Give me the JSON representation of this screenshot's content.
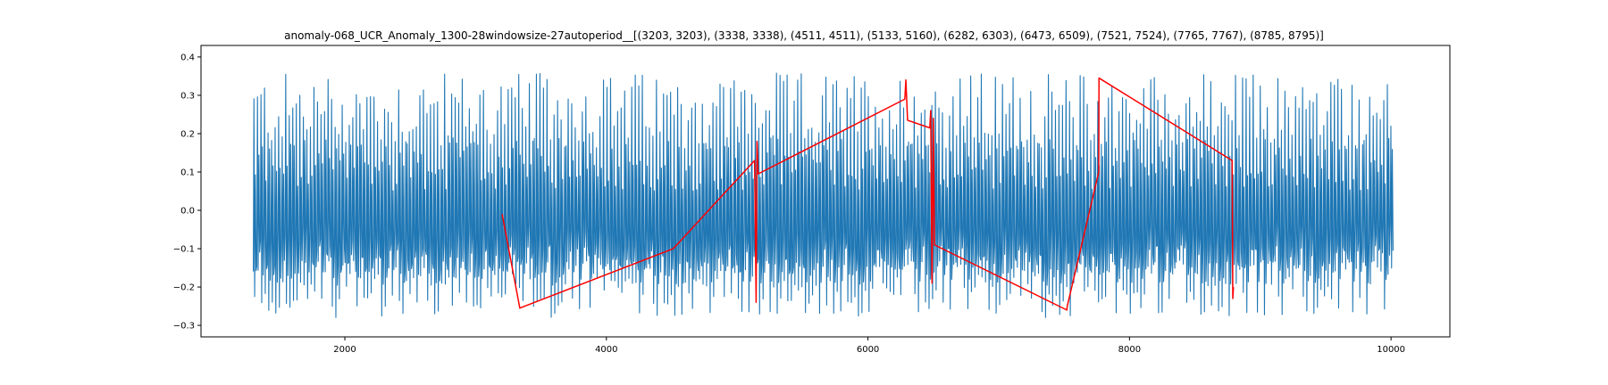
{
  "chart_data": {
    "type": "line",
    "title": "anomaly-068_UCR_Anomaly_1300-28windowsize-27autoperiod__[(3203, 3203), (3338, 3338), (4511, 4511), (5133, 5160), (6282, 6303), (6473, 6509), (7521, 7524), (7765, 7767), (8785, 8795)]",
    "xlabel": "",
    "ylabel": "",
    "xlim": [
      900,
      10450
    ],
    "ylim": [
      -0.33,
      0.43
    ],
    "x_ticks": [
      2000,
      4000,
      6000,
      8000,
      10000
    ],
    "y_ticks": [
      -0.3,
      -0.2,
      -0.1,
      0.0,
      0.1,
      0.2,
      0.3,
      0.4
    ],
    "x_tick_labels": [
      "2000",
      "4000",
      "6000",
      "8000",
      "10000"
    ],
    "y_tick_labels": [
      "−0.3",
      "−0.2",
      "−0.1",
      "0.0",
      "0.1",
      "0.2",
      "0.3",
      "0.4"
    ],
    "grid": false,
    "colors": {
      "signal": "#1f77b4",
      "anomaly": "#ff0000"
    },
    "series": [
      {
        "role": "signal",
        "style": "dense periodic oscillation",
        "x_range": [
          1300,
          10000
        ],
        "y_range": [
          -0.3,
          0.4
        ],
        "period": 27
      },
      {
        "role": "anomaly",
        "points": [
          [
            3203,
            -0.01
          ],
          [
            3338,
            -0.255
          ],
          [
            4511,
            -0.1
          ],
          [
            5133,
            0.13
          ],
          [
            5145,
            -0.24
          ],
          [
            5152,
            0.18
          ],
          [
            5160,
            0.095
          ],
          [
            6282,
            0.29
          ],
          [
            6290,
            0.34
          ],
          [
            6303,
            0.235
          ],
          [
            6473,
            0.215
          ],
          [
            6480,
            0.26
          ],
          [
            6490,
            -0.19
          ],
          [
            6500,
            0.24
          ],
          [
            6509,
            -0.09
          ],
          [
            7521,
            -0.26
          ],
          [
            7524,
            -0.25
          ],
          [
            7765,
            0.1
          ],
          [
            7767,
            0.345
          ],
          [
            8785,
            0.13
          ],
          [
            8790,
            -0.23
          ],
          [
            8795,
            -0.2
          ]
        ]
      }
    ]
  }
}
